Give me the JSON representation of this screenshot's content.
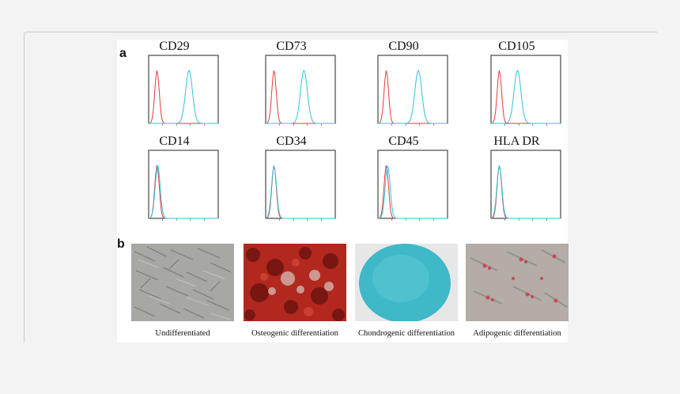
{
  "figure": {
    "panel_a_label": "a",
    "panel_b_label": "b",
    "markers": [
      "CD29",
      "CD73",
      "CD90",
      "CD105",
      "CD14",
      "CD34",
      "CD45",
      "HLA DR"
    ],
    "captions": [
      "Undifferentiated",
      "Osteogenic differentiation",
      "Chondrogenic differentiation",
      "Adipogenic differentiation"
    ],
    "colors": {
      "isotype": "#e23b3b",
      "stained": "#2ec4dc",
      "alizarin": "#b2281e",
      "alcian": "#3fb8c8",
      "oil_red": "#c84a55"
    }
  }
}
